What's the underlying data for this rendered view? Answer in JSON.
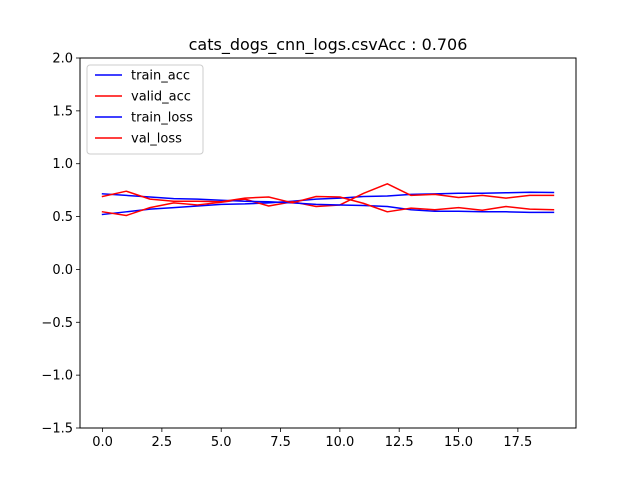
{
  "chart_data": {
    "type": "line",
    "title": "cats_dogs_cnn_logs.csvAcc : 0.706",
    "xlabel": "",
    "ylabel": "",
    "xlim": [
      -0.95,
      19.95
    ],
    "ylim": [
      -1.5,
      2.0
    ],
    "xticks": [
      0,
      2.5,
      5,
      7.5,
      10,
      12.5,
      15,
      17.5
    ],
    "xtick_labels": [
      "0.0",
      "2.5",
      "5.0",
      "7.5",
      "10.0",
      "12.5",
      "15.0",
      "17.5"
    ],
    "yticks": [
      -1.5,
      -1.0,
      -0.5,
      0.0,
      0.5,
      1.0,
      1.5,
      2.0
    ],
    "ytick_labels": [
      "−1.5",
      "−1.0",
      "−0.5",
      "0.0",
      "0.5",
      "1.0",
      "1.5",
      "2.0"
    ],
    "grid": false,
    "legend_position": "top-left",
    "x": [
      0,
      1,
      2,
      3,
      4,
      5,
      6,
      7,
      8,
      9,
      10,
      11,
      12,
      13,
      14,
      15,
      16,
      17,
      18,
      19
    ],
    "series": [
      {
        "name": "train_acc",
        "color": "#0000ff",
        "values": [
          0.52,
          0.545,
          0.57,
          0.585,
          0.6,
          0.615,
          0.62,
          0.63,
          0.645,
          0.665,
          0.675,
          0.69,
          0.695,
          0.71,
          0.715,
          0.72,
          0.72,
          0.725,
          0.73,
          0.728
        ]
      },
      {
        "name": "valid_acc",
        "color": "#ff0000",
        "values": [
          0.545,
          0.51,
          0.585,
          0.63,
          0.61,
          0.635,
          0.665,
          0.6,
          0.64,
          0.595,
          0.61,
          0.72,
          0.81,
          0.7,
          0.71,
          0.68,
          0.7,
          0.675,
          0.7,
          0.7
        ]
      },
      {
        "name": "train_loss",
        "color": "#0000ff",
        "values": [
          0.715,
          0.7,
          0.685,
          0.67,
          0.665,
          0.655,
          0.645,
          0.64,
          0.63,
          0.615,
          0.61,
          0.605,
          0.595,
          0.565,
          0.55,
          0.55,
          0.545,
          0.545,
          0.54,
          0.54
        ]
      },
      {
        "name": "val_loss",
        "color": "#ff0000",
        "values": [
          0.69,
          0.74,
          0.665,
          0.645,
          0.645,
          0.64,
          0.675,
          0.685,
          0.63,
          0.69,
          0.685,
          0.625,
          0.545,
          0.58,
          0.565,
          0.585,
          0.56,
          0.595,
          0.57,
          0.565
        ]
      }
    ]
  }
}
